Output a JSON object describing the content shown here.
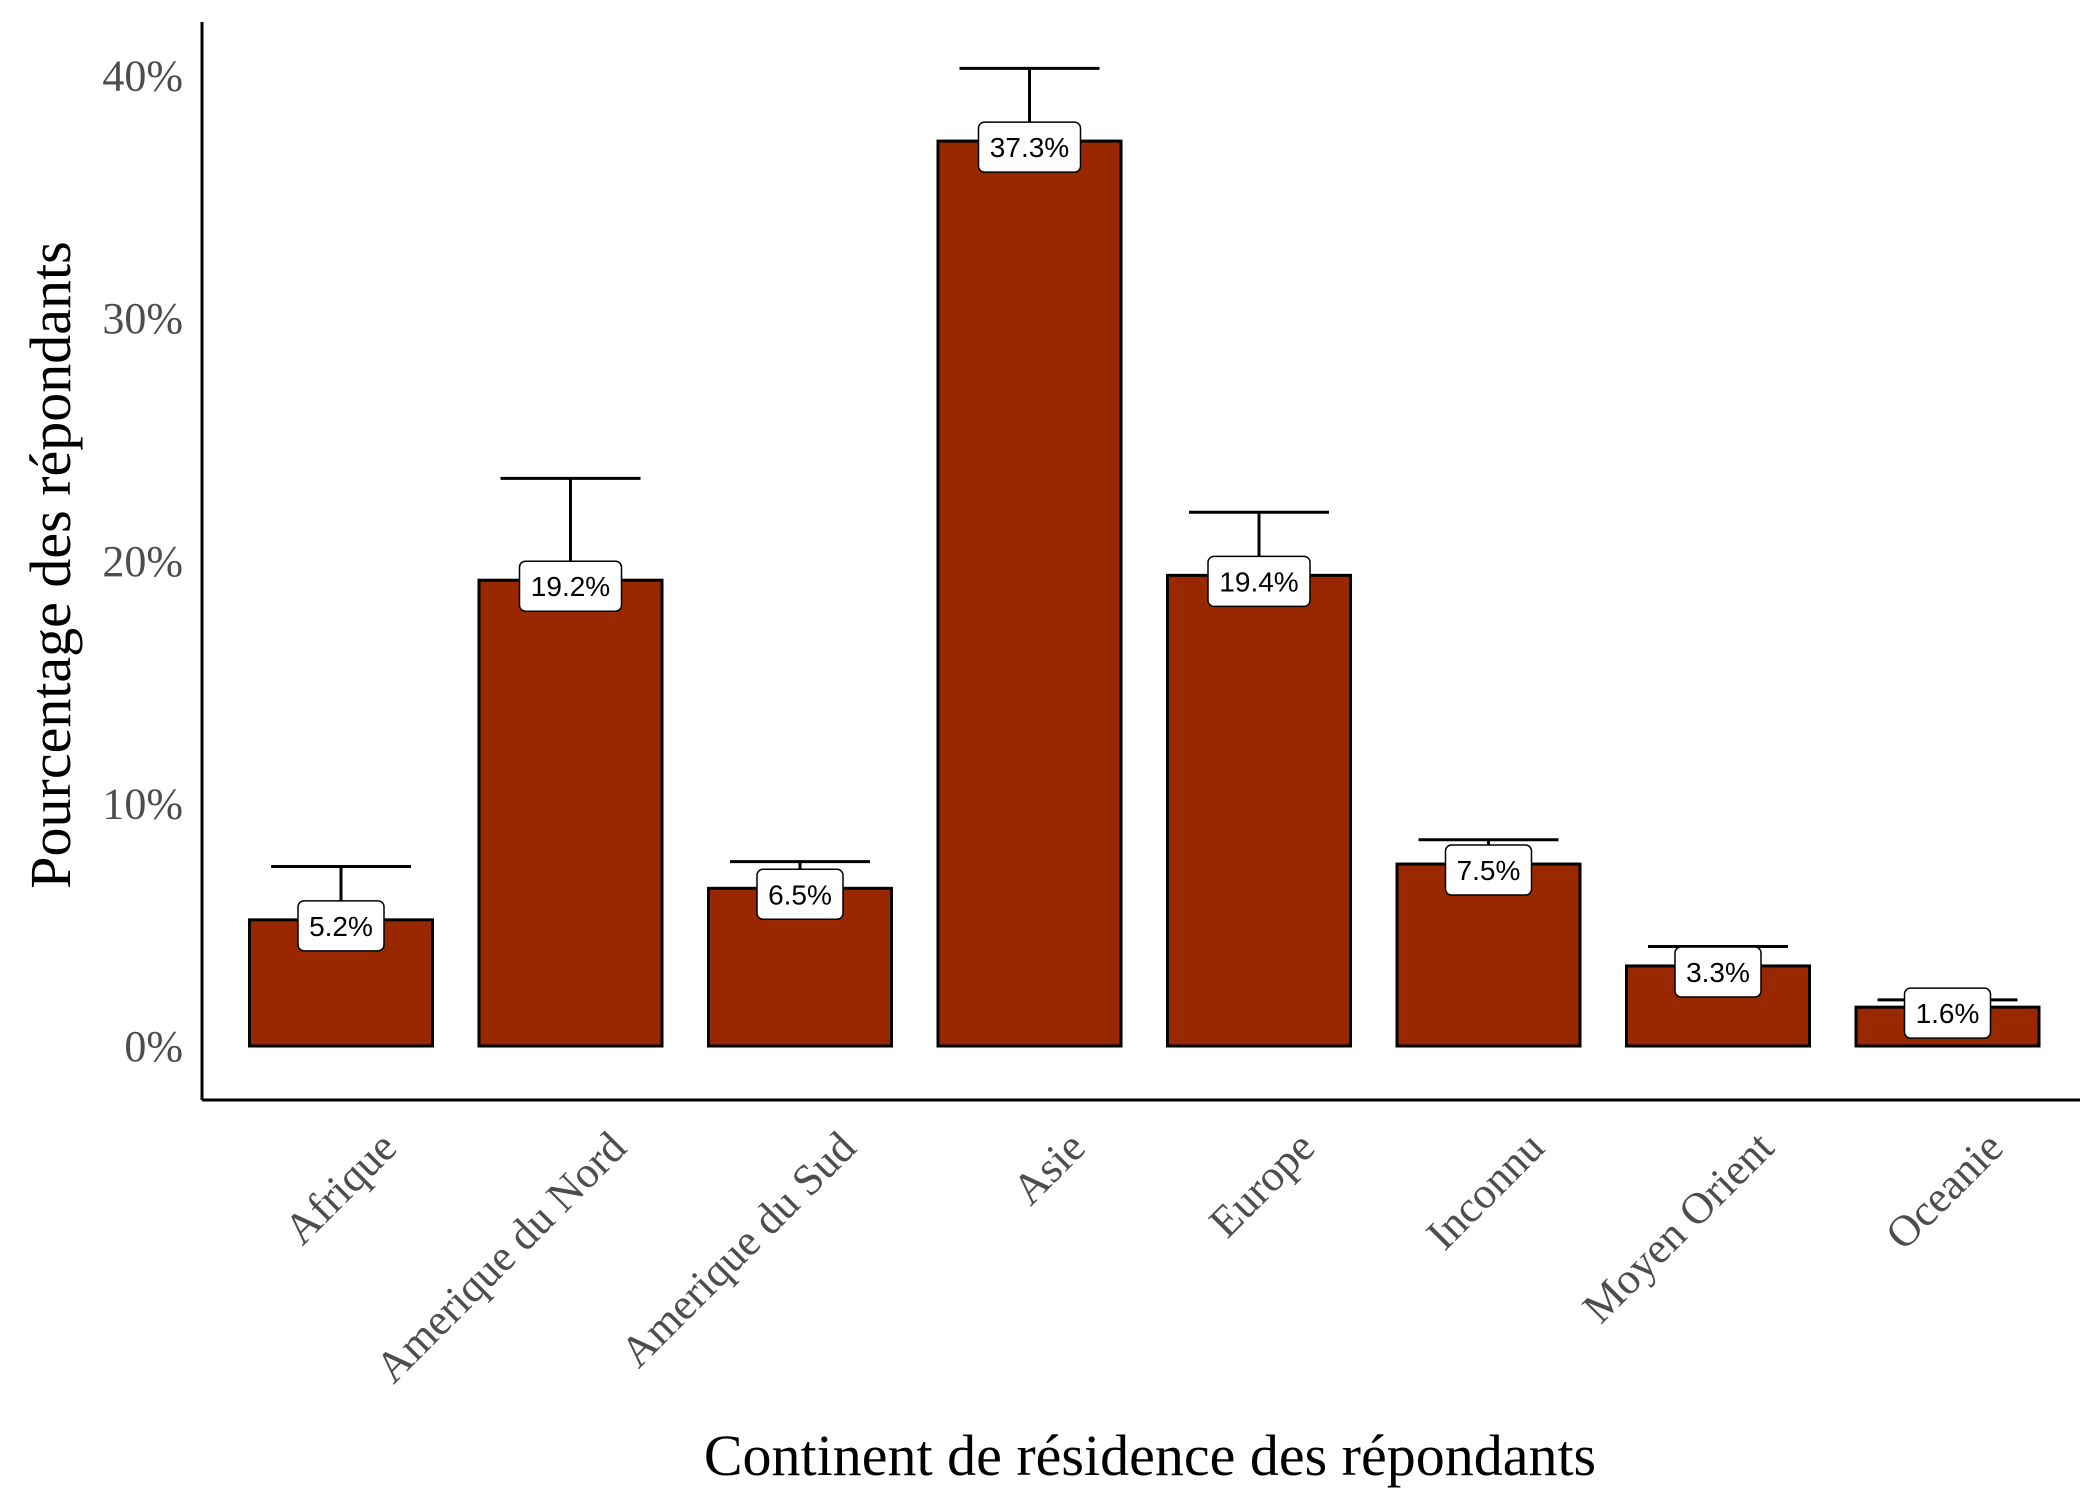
{
  "chart_data": {
    "type": "bar",
    "title": "",
    "xlabel": "Continent de résidence des répondants",
    "ylabel": "Pourcentage des répondants",
    "categories": [
      "Afrique",
      "Amerique du Nord",
      "Amerique du Sud",
      "Asie",
      "Europe",
      "Inconnu",
      "Moyen Orient",
      "Oceanie"
    ],
    "values": [
      5.2,
      19.2,
      6.5,
      37.3,
      19.4,
      7.5,
      3.3,
      1.6
    ],
    "error_upper": [
      7.4,
      23.4,
      7.6,
      40.3,
      22.0,
      8.5,
      4.1,
      1.9
    ],
    "data_labels": [
      "5.2%",
      "19.2%",
      "6.5%",
      "37.3%",
      "19.4%",
      "7.5%",
      "3.3%",
      "1.6%"
    ],
    "yticks": [
      0,
      10,
      20,
      30,
      40
    ],
    "ytick_labels": [
      "0%",
      "10%",
      "20%",
      "30%",
      "40%"
    ],
    "ylim": [
      0,
      42
    ],
    "grid": false,
    "legend": "none",
    "colors": {
      "bar_fill": "#992800",
      "bar_stroke": "#000000",
      "tick_text": "#4d4d4d"
    }
  }
}
